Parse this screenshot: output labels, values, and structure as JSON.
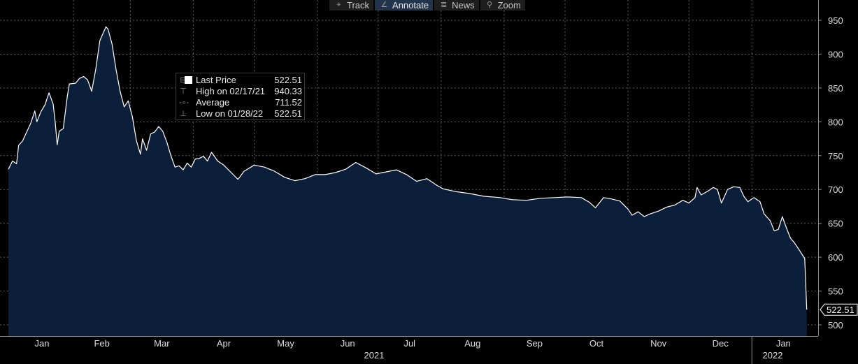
{
  "toolbar": {
    "buttons": [
      {
        "label": "Track",
        "icon": "crosshair-icon",
        "active": false
      },
      {
        "label": "Annotate",
        "icon": "pencil-icon",
        "active": true
      },
      {
        "label": "News",
        "icon": "news-icon",
        "active": false
      },
      {
        "label": "Zoom",
        "icon": "magnifier-icon",
        "active": false
      }
    ]
  },
  "legend": {
    "rows": [
      {
        "label": "Last Price",
        "value": "522.51"
      },
      {
        "label": "High on 02/17/21",
        "value": "940.33"
      },
      {
        "label": "Average",
        "value": "711.52"
      },
      {
        "label": "Low on 01/28/22",
        "value": "522.51"
      }
    ]
  },
  "last_price_tag": "522.51",
  "colors": {
    "background": "#000000",
    "area_fill": "#0b1f3a",
    "line": "#ffffff",
    "grid": "#5a5a5a",
    "axis_text": "#dcdcdc",
    "active_button": "#23354d"
  },
  "chart_data": {
    "type": "area",
    "title": "",
    "xlabel": "",
    "ylabel": "",
    "ylim": [
      480,
      972
    ],
    "yticks": [
      500,
      550,
      600,
      650,
      700,
      750,
      800,
      850,
      900,
      950
    ],
    "x_range": [
      "2020-12-31",
      "2022-02-01"
    ],
    "month_labels": [
      "Jan",
      "Feb",
      "Mar",
      "Apr",
      "May",
      "Jun",
      "Jul",
      "Aug",
      "Sep",
      "Oct",
      "Nov",
      "Dec",
      "Jan"
    ],
    "year_labels": [
      {
        "text": "2021",
        "date": "2021-07-01"
      },
      {
        "text": "2022",
        "date": "2022-01-16"
      }
    ],
    "grid": true,
    "y_axis_position": "right",
    "series": [
      {
        "points": [
          [
            "2020-12-31",
            730
          ],
          [
            "2021-01-02",
            742
          ],
          [
            "2021-01-04",
            738
          ],
          [
            "2021-01-05",
            765
          ],
          [
            "2021-01-07",
            772
          ],
          [
            "2021-01-09",
            785
          ],
          [
            "2021-01-11",
            798
          ],
          [
            "2021-01-13",
            816
          ],
          [
            "2021-01-14",
            800
          ],
          [
            "2021-01-16",
            815
          ],
          [
            "2021-01-18",
            825
          ],
          [
            "2021-01-20",
            843
          ],
          [
            "2021-01-22",
            826
          ],
          [
            "2021-01-23",
            800
          ],
          [
            "2021-01-24",
            766
          ],
          [
            "2021-01-25",
            786
          ],
          [
            "2021-01-27",
            790
          ],
          [
            "2021-01-29",
            838
          ],
          [
            "2021-01-30",
            856
          ],
          [
            "2021-02-02",
            857
          ],
          [
            "2021-02-04",
            864
          ],
          [
            "2021-02-06",
            867
          ],
          [
            "2021-02-08",
            862
          ],
          [
            "2021-02-10",
            845
          ],
          [
            "2021-02-12",
            878
          ],
          [
            "2021-02-14",
            920
          ],
          [
            "2021-02-17",
            940.33
          ],
          [
            "2021-02-18",
            937
          ],
          [
            "2021-02-20",
            915
          ],
          [
            "2021-02-22",
            877
          ],
          [
            "2021-02-24",
            845
          ],
          [
            "2021-02-26",
            822
          ],
          [
            "2021-02-28",
            831
          ],
          [
            "2021-03-02",
            808
          ],
          [
            "2021-03-04",
            772
          ],
          [
            "2021-03-06",
            752
          ],
          [
            "2021-03-07",
            775
          ],
          [
            "2021-03-09",
            758
          ],
          [
            "2021-03-11",
            782
          ],
          [
            "2021-03-13",
            785
          ],
          [
            "2021-03-15",
            793
          ],
          [
            "2021-03-17",
            786
          ],
          [
            "2021-03-19",
            770
          ],
          [
            "2021-03-21",
            750
          ],
          [
            "2021-03-23",
            733
          ],
          [
            "2021-03-25",
            735
          ],
          [
            "2021-03-27",
            729
          ],
          [
            "2021-03-29",
            739
          ],
          [
            "2021-03-31",
            733
          ],
          [
            "2021-04-02",
            745
          ],
          [
            "2021-04-04",
            746
          ],
          [
            "2021-04-06",
            749
          ],
          [
            "2021-04-08",
            742
          ],
          [
            "2021-04-10",
            755
          ],
          [
            "2021-04-13",
            742
          ],
          [
            "2021-04-16",
            736
          ],
          [
            "2021-04-20",
            724
          ],
          [
            "2021-04-23",
            715
          ],
          [
            "2021-04-26",
            727
          ],
          [
            "2021-05-01",
            736
          ],
          [
            "2021-05-06",
            733
          ],
          [
            "2021-05-11",
            727
          ],
          [
            "2021-05-16",
            718
          ],
          [
            "2021-05-21",
            713
          ],
          [
            "2021-05-26",
            716
          ],
          [
            "2021-05-31",
            722
          ],
          [
            "2021-06-05",
            722
          ],
          [
            "2021-06-10",
            725
          ],
          [
            "2021-06-15",
            730
          ],
          [
            "2021-06-20",
            740
          ],
          [
            "2021-06-25",
            732
          ],
          [
            "2021-06-30",
            723
          ],
          [
            "2021-07-05",
            726
          ],
          [
            "2021-07-10",
            729
          ],
          [
            "2021-07-15",
            722
          ],
          [
            "2021-07-20",
            712
          ],
          [
            "2021-07-25",
            716
          ],
          [
            "2021-07-30",
            706
          ],
          [
            "2021-08-02",
            701
          ],
          [
            "2021-08-08",
            697
          ],
          [
            "2021-08-15",
            694
          ],
          [
            "2021-08-22",
            690
          ],
          [
            "2021-08-30",
            688
          ],
          [
            "2021-09-05",
            685
          ],
          [
            "2021-09-12",
            684
          ],
          [
            "2021-09-19",
            687
          ],
          [
            "2021-09-26",
            688
          ],
          [
            "2021-10-02",
            689
          ],
          [
            "2021-10-09",
            688
          ],
          [
            "2021-10-13",
            681
          ],
          [
            "2021-10-16",
            673
          ],
          [
            "2021-10-20",
            688
          ],
          [
            "2021-10-24",
            686
          ],
          [
            "2021-10-28",
            683
          ],
          [
            "2021-11-01",
            671
          ],
          [
            "2021-11-03",
            662
          ],
          [
            "2021-11-06",
            667
          ],
          [
            "2021-11-09",
            660
          ],
          [
            "2021-11-12",
            664
          ],
          [
            "2021-11-16",
            668
          ],
          [
            "2021-11-20",
            674
          ],
          [
            "2021-11-24",
            677
          ],
          [
            "2021-11-28",
            684
          ],
          [
            "2021-12-01",
            680
          ],
          [
            "2021-12-04",
            688
          ],
          [
            "2021-12-05",
            703
          ],
          [
            "2021-12-07",
            692
          ],
          [
            "2021-12-10",
            697
          ],
          [
            "2021-12-13",
            703
          ],
          [
            "2021-12-15",
            700
          ],
          [
            "2021-12-17",
            680
          ],
          [
            "2021-12-20",
            700
          ],
          [
            "2021-12-23",
            704
          ],
          [
            "2021-12-26",
            703
          ],
          [
            "2021-12-28",
            690
          ],
          [
            "2021-12-30",
            682
          ],
          [
            "2022-01-02",
            688
          ],
          [
            "2022-01-05",
            682
          ],
          [
            "2022-01-07",
            664
          ],
          [
            "2022-01-10",
            654
          ],
          [
            "2022-01-12",
            639
          ],
          [
            "2022-01-14",
            641
          ],
          [
            "2022-01-16",
            660
          ],
          [
            "2022-01-18",
            643
          ],
          [
            "2022-01-20",
            628
          ],
          [
            "2022-01-22",
            621
          ],
          [
            "2022-01-24",
            612
          ],
          [
            "2022-01-27",
            598
          ],
          [
            "2022-01-28",
            522.51
          ]
        ]
      }
    ]
  }
}
